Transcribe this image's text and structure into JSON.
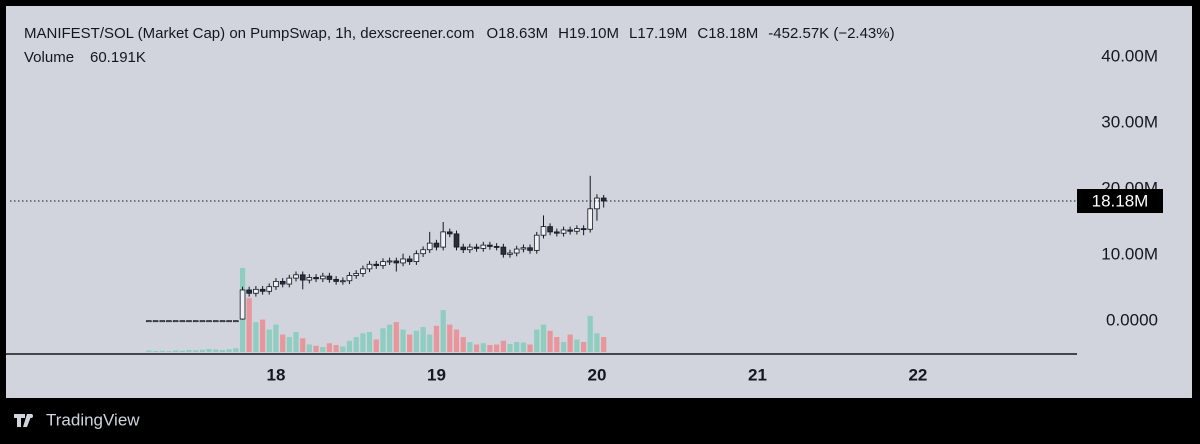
{
  "chart_data": {
    "type": "candlestick",
    "title": "MANIFEST/SOL (Market Cap) on PumpSwap, 1h, dexscreener.com",
    "ohlc_text": [
      "O18.63M",
      "H19.10M",
      "L17.19M",
      "C18.18M",
      "-452.57K (−2.43%)"
    ],
    "volume_title": "Volume",
    "volume_text": "60.191K",
    "last_price_label": "18.18M",
    "brand": "TradingView",
    "x": [
      17.208,
      17.25,
      17.292,
      17.333,
      17.375,
      17.417,
      17.458,
      17.5,
      17.542,
      17.583,
      17.625,
      17.667,
      17.708,
      17.75,
      17.792,
      17.833,
      17.875,
      17.917,
      17.958,
      18,
      18.042,
      18.083,
      18.125,
      18.167,
      18.208,
      18.25,
      18.292,
      18.333,
      18.375,
      18.417,
      18.458,
      18.5,
      18.542,
      18.583,
      18.625,
      18.667,
      18.708,
      18.75,
      18.792,
      18.833,
      18.875,
      18.917,
      18.958,
      19,
      19.042,
      19.083,
      19.125,
      19.167,
      19.208,
      19.25,
      19.292,
      19.333,
      19.375,
      19.417,
      19.458,
      19.5,
      19.542,
      19.583,
      19.625,
      19.667,
      19.708,
      19.75,
      19.792,
      19.833,
      19.875,
      19.917,
      19.958,
      20,
      20.042
    ],
    "open": [
      0.05,
      0.05,
      0.05,
      0.05,
      0.05,
      0.05,
      0.05,
      0.05,
      0.05,
      0.05,
      0.05,
      0.05,
      0.05,
      0.05,
      0.3,
      4.7,
      4.2,
      4.8,
      4.5,
      5.2,
      6.0,
      5.6,
      6.5,
      7.0,
      6.2,
      6.6,
      6.4,
      6.8,
      6.3,
      6.0,
      6.1,
      6.9,
      7.2,
      7.9,
      8.6,
      8.4,
      9.0,
      9.1,
      8.8,
      9.4,
      9.0,
      10.2,
      10.8,
      11.8,
      11.2,
      13.5,
      13.2,
      11.2,
      10.8,
      11.2,
      11.0,
      11.5,
      11.3,
      11.2,
      10.1,
      10.3,
      10.9,
      11.1,
      10.7,
      13.0,
      14.3,
      13.5,
      13.3,
      13.8,
      13.6,
      14.0,
      13.9,
      17.0,
      18.63
    ],
    "high": [
      0.05,
      0.05,
      0.05,
      0.05,
      0.05,
      0.05,
      0.05,
      0.05,
      0.05,
      0.05,
      0.05,
      0.05,
      0.05,
      0.05,
      5.2,
      5.2,
      5.3,
      5.3,
      5.7,
      6.5,
      6.5,
      7.0,
      7.5,
      7.5,
      7.1,
      7.1,
      7.3,
      7.3,
      6.8,
      6.6,
      7.4,
      7.7,
      8.4,
      9.1,
      9.1,
      9.5,
      9.6,
      9.6,
      10.2,
      9.9,
      10.7,
      11.3,
      13.5,
      12.3,
      15.0,
      14.0,
      13.7,
      11.7,
      11.7,
      11.7,
      12.0,
      12.0,
      11.8,
      11.7,
      10.8,
      11.4,
      11.6,
      11.6,
      13.5,
      16.0,
      14.8,
      14.0,
      14.3,
      14.3,
      14.5,
      14.5,
      22.0,
      19.2,
      19.1
    ],
    "low": [
      0.05,
      0.05,
      0.05,
      0.05,
      0.05,
      0.05,
      0.05,
      0.05,
      0.05,
      0.05,
      0.05,
      0.05,
      0.05,
      0.05,
      0.2,
      3.7,
      3.7,
      4.0,
      4.0,
      4.7,
      5.1,
      5.1,
      6.0,
      4.8,
      5.7,
      5.9,
      5.9,
      5.8,
      5.5,
      5.5,
      5.6,
      6.4,
      6.7,
      7.4,
      7.9,
      7.9,
      8.5,
      7.5,
      8.3,
      8.5,
      8.5,
      9.7,
      10.3,
      10.7,
      10.7,
      12.7,
      10.7,
      10.3,
      10.3,
      10.5,
      10.5,
      10.8,
      10.7,
      9.6,
      9.6,
      9.8,
      10.4,
      10.2,
      10.2,
      12.5,
      13.0,
      12.8,
      12.8,
      13.1,
      13.1,
      13.0,
      13.4,
      15.2,
      17.19
    ],
    "close": [
      0.05,
      0.05,
      0.05,
      0.05,
      0.05,
      0.05,
      0.05,
      0.05,
      0.05,
      0.05,
      0.05,
      0.05,
      0.05,
      0.05,
      4.7,
      4.2,
      4.8,
      4.5,
      5.2,
      6.0,
      5.6,
      6.5,
      7.0,
      6.2,
      6.6,
      6.4,
      6.8,
      6.3,
      6.0,
      6.1,
      6.9,
      7.2,
      7.9,
      8.6,
      8.4,
      9.0,
      9.1,
      8.8,
      9.4,
      9.0,
      10.2,
      10.8,
      11.8,
      11.2,
      13.5,
      13.2,
      11.2,
      10.8,
      11.2,
      11.0,
      11.5,
      11.3,
      11.2,
      10.1,
      10.3,
      10.9,
      11.1,
      10.7,
      13.0,
      14.3,
      13.5,
      13.3,
      13.8,
      13.6,
      14.0,
      13.9,
      17.0,
      18.63,
      18.18
    ],
    "volume": [
      6000,
      4000,
      5000,
      4000,
      6000,
      5000,
      8000,
      7000,
      9000,
      12000,
      10000,
      8000,
      11000,
      15000,
      337000,
      216000,
      120000,
      130000,
      90000,
      110000,
      70000,
      60000,
      80000,
      55000,
      30000,
      25000,
      20000,
      35000,
      28000,
      22000,
      45000,
      60000,
      75000,
      80000,
      50000,
      95000,
      110000,
      120000,
      90000,
      70000,
      85000,
      100000,
      70000,
      105000,
      168000,
      110000,
      90000,
      60000,
      40000,
      30000,
      35000,
      28000,
      30000,
      45000,
      32000,
      40000,
      38000,
      30000,
      90000,
      110000,
      85000,
      60000,
      40000,
      70000,
      50000,
      40000,
      145000,
      75000,
      60191
    ],
    "up_color": "#f0f1f4",
    "down_color": "#2a2e39",
    "wick_color": "#131722",
    "up_volume_color": "#8ecdbf",
    "down_volume_color": "#e9959c",
    "volume_text_color": "#f23645",
    "xlim": [
      16.343,
      22.991
    ],
    "xticks": [
      18,
      19,
      20,
      21,
      22
    ],
    "ylim": [
      -5.15,
      47.12
    ],
    "yticks": [
      {
        "value": 0,
        "label": "0.0000"
      },
      {
        "value": 10,
        "label": "10.00M"
      },
      {
        "value": 20,
        "label": "20.00M"
      },
      {
        "value": 30,
        "label": "30.00M"
      },
      {
        "value": 40,
        "label": "40.00M"
      }
    ]
  }
}
